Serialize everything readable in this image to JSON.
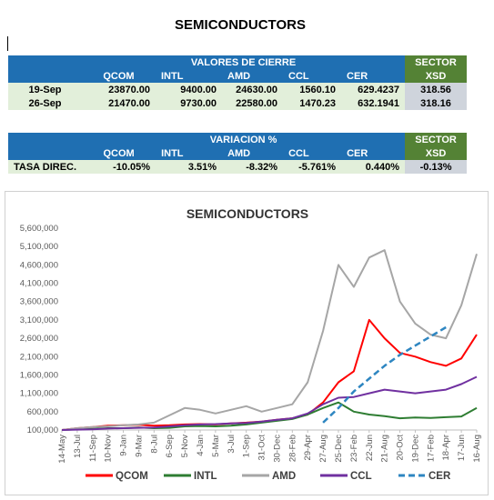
{
  "page_title": "SEMICONDUCTORS",
  "table1": {
    "header": "VALORES DE CIERRE",
    "sector_label": "SECTOR",
    "sector_sub": "XSD",
    "columns": [
      "QCOM",
      "INTL",
      "AMD",
      "CCL",
      "CER"
    ],
    "rows": [
      {
        "label": "19-Sep",
        "values": [
          "23870.00",
          "9400.00",
          "24630.00",
          "1560.10",
          "629.4237"
        ],
        "xsd": "318.56"
      },
      {
        "label": "26-Sep",
        "values": [
          "21470.00",
          "9730.00",
          "22580.00",
          "1470.23",
          "632.1941"
        ],
        "xsd": "318.16"
      }
    ]
  },
  "table2": {
    "header": "VARIACION %",
    "sector_label": "SECTOR",
    "sector_sub": "XSD",
    "columns": [
      "QCOM",
      "INTL",
      "AMD",
      "CCL",
      "CER"
    ],
    "row": {
      "label": "TASA DIREC.",
      "values": [
        "-10.05%",
        "3.51%",
        "-8.32%",
        "-5.761%",
        "0.440%"
      ],
      "xsd": "-0.13%"
    }
  },
  "colors": {
    "QCOM": "#ff0000",
    "INTL": "#2e7d32",
    "AMD": "#a6a6a6",
    "CCL": "#7030a0",
    "CER": "#2e86c1",
    "header_blue": "#1f6fb2",
    "sector_green": "#548235"
  },
  "chart_data": {
    "type": "line",
    "title": "SEMICONDUCTORS",
    "xlabel": "",
    "ylabel": "",
    "ylim": [
      100000,
      5600000
    ],
    "yticks": [
      "100,000",
      "600,000",
      "1,100,000",
      "1,600,000",
      "2,100,000",
      "2,600,000",
      "3,100,000",
      "3,600,000",
      "4,100,000",
      "4,600,000",
      "5,100,000",
      "5,600,000"
    ],
    "categories": [
      "14-May",
      "13-Jul",
      "11-Sep",
      "10-Nov",
      "9-Jan",
      "9-Mar",
      "8-Jul",
      "6-Sep",
      "5-Nov",
      "4-Jan",
      "5-Mar",
      "3-Jul",
      "1-Sep",
      "31-Oct",
      "30-Dec",
      "28-Feb",
      "29-Apr",
      "27-Aug",
      "25-Dec",
      "23-Feb",
      "22-Jun",
      "21-Aug",
      "20-Oct",
      "19-Dec",
      "17-Feb",
      "18-Apr",
      "17-Jun",
      "16-Aug"
    ],
    "legend_position": "bottom",
    "grid": false,
    "series": [
      {
        "name": "QCOM",
        "style": "solid",
        "values": [
          100000,
          150000,
          180000,
          220000,
          230000,
          240000,
          220000,
          230000,
          250000,
          260000,
          250000,
          280000,
          300000,
          330000,
          380000,
          420000,
          520000,
          850000,
          1400000,
          1700000,
          3100000,
          2600000,
          2200000,
          2100000,
          1950000,
          1850000,
          2050000,
          2700000
        ]
      },
      {
        "name": "INTL",
        "style": "solid",
        "values": [
          100000,
          120000,
          130000,
          150000,
          150000,
          170000,
          150000,
          160000,
          200000,
          210000,
          200000,
          220000,
          250000,
          300000,
          350000,
          400000,
          520000,
          700000,
          850000,
          600000,
          520000,
          480000,
          420000,
          440000,
          430000,
          450000,
          470000,
          700000
        ]
      },
      {
        "name": "AMD",
        "style": "solid",
        "values": [
          100000,
          150000,
          180000,
          200000,
          230000,
          250000,
          300000,
          500000,
          700000,
          650000,
          550000,
          650000,
          750000,
          600000,
          700000,
          800000,
          1400000,
          2800000,
          4600000,
          4000000,
          4800000,
          5000000,
          3600000,
          3000000,
          2700000,
          2600000,
          3500000,
          4900000
        ]
      },
      {
        "name": "CCL",
        "style": "solid",
        "values": [
          100000,
          110000,
          120000,
          140000,
          150000,
          160000,
          170000,
          200000,
          230000,
          250000,
          260000,
          280000,
          290000,
          330000,
          380000,
          420000,
          550000,
          800000,
          980000,
          1000000,
          1100000,
          1200000,
          1150000,
          1100000,
          1150000,
          1200000,
          1350000,
          1550000
        ]
      },
      {
        "name": "CER",
        "style": "dashed",
        "values": [
          null,
          null,
          null,
          null,
          null,
          null,
          null,
          null,
          null,
          null,
          null,
          null,
          null,
          null,
          null,
          null,
          null,
          300000,
          700000,
          1150000,
          1500000,
          1850000,
          2150000,
          2400000,
          2650000,
          2900000,
          null,
          null
        ]
      }
    ]
  }
}
